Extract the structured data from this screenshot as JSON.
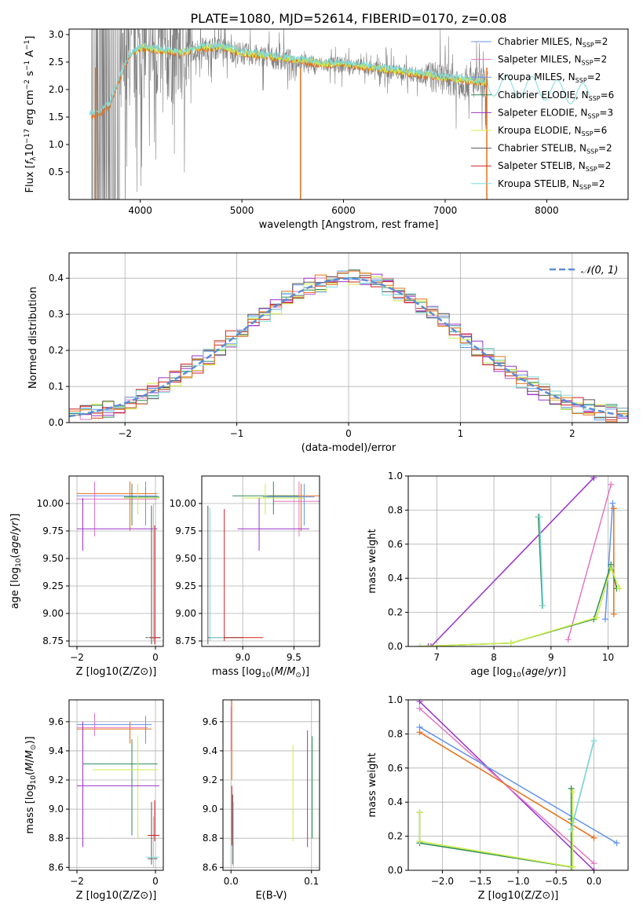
{
  "figure": {
    "title": "PLATE=1080, MJD=52614, FIBERID=0170, z=0.08"
  },
  "colors": {
    "chabrier_miles": "#6495ED",
    "salpeter_miles": "#E377C2",
    "kroupa_miles": "#6495ED",
    "chabrier_elodie": "#2E8B57",
    "salpeter_elodie": "#9932CC",
    "kroupa_elodie": "#CCEE44",
    "chabrier_stelib": "#555555",
    "salpeter_stelib": "#CC2222",
    "kroupa_stelib": "#7FDBDB",
    "orange": "#E8701A",
    "data_gray": "#808080"
  },
  "chart_data": [
    {
      "id": "spectrum",
      "type": "line",
      "xlabel": "wavelength [Angstrom, rest frame]",
      "ylabel": "Flux [f_λ 10^-17 erg cm^-2 s^-1 A^-1]",
      "xlim": [
        3300,
        8800
      ],
      "ylim": [
        0.0,
        3.1
      ],
      "xticks": [
        "4000",
        "5000",
        "6000",
        "7000",
        "8000"
      ],
      "yticks": [
        "0.5",
        "1.0",
        "1.5",
        "2.0",
        "2.5",
        "3.0"
      ],
      "legend_position": "right",
      "legend": [
        {
          "label": "Chabrier MILES, N",
          "sub": "SSP",
          "tail": "=2",
          "color": "#6495ED"
        },
        {
          "label": "Salpeter MILES, N",
          "sub": "SSP",
          "tail": "=2",
          "color": "#E377C2"
        },
        {
          "label": "Kroupa MILES, N",
          "sub": "SSP",
          "tail": "=2",
          "color": "#6495ED"
        },
        {
          "label": "Chabrier ELODIE, N",
          "sub": "SSP",
          "tail": "=6",
          "color": "#2E8B57"
        },
        {
          "label": "Salpeter ELODIE, N",
          "sub": "SSP",
          "tail": "=3",
          "color": "#9932CC"
        },
        {
          "label": "Kroupa ELODIE, N",
          "sub": "SSP",
          "tail": "=6",
          "color": "#CCEE44"
        },
        {
          "label": "Chabrier STELIB, N",
          "sub": "SSP",
          "tail": "=2",
          "color": "#555555"
        },
        {
          "label": "Salpeter STELIB, N",
          "sub": "SSP",
          "tail": "=2",
          "color": "#CC2222"
        },
        {
          "label": "Kroupa STELIB, N",
          "sub": "SSP",
          "tail": "=2",
          "color": "#7FDBDB"
        }
      ],
      "continuum": {
        "x": [
          3500,
          3600,
          3700,
          3800,
          3900,
          4000,
          4200,
          4400,
          4600,
          4800,
          5000,
          5200,
          5400,
          5600,
          5800,
          6000,
          6200,
          6400,
          6600,
          6800,
          7000,
          7200,
          7400,
          7600,
          7800,
          8000,
          8200,
          8400
        ],
        "y": [
          1.5,
          1.55,
          1.7,
          2.2,
          2.6,
          2.75,
          2.7,
          2.65,
          2.75,
          2.75,
          2.65,
          2.6,
          2.55,
          2.5,
          2.45,
          2.45,
          2.4,
          2.35,
          2.3,
          2.25,
          2.2,
          2.15,
          2.1,
          2.05,
          2.05,
          2.0,
          1.95,
          1.9
        ]
      }
    },
    {
      "id": "residuals",
      "type": "histogram",
      "xlabel": "(data-model)/error",
      "ylabel": "Normed distribution",
      "xlim": [
        -2.5,
        2.5
      ],
      "ylim": [
        0.0,
        0.47
      ],
      "xticks": [
        "−2",
        "−1",
        "0",
        "1",
        "2"
      ],
      "yticks": [
        "0.0",
        "0.1",
        "0.2",
        "0.3",
        "0.4"
      ],
      "legend_label": "𝒩(0, 1)",
      "legend_position": "top-right",
      "grid": true
    },
    {
      "id": "z-age",
      "type": "scatter",
      "xlabel": "Z [log10(Z/Z⊙)]",
      "ylabel": "age [log10(age/yr)]",
      "xlim": [
        -2.2,
        0.2
      ],
      "ylim": [
        8.7,
        10.25
      ],
      "xticks": [
        "−2",
        "0"
      ],
      "yticks": [
        "8.75",
        "9.00",
        "9.25",
        "9.50",
        "9.75",
        "10.00"
      ],
      "grid": true
    },
    {
      "id": "mass-age",
      "type": "scatter",
      "xlabel": "mass [log10(M/M⊙)]",
      "xlim": [
        8.6,
        9.75
      ],
      "ylim": [
        8.7,
        10.25
      ],
      "xticks": [
        "9.0",
        "9.5"
      ],
      "yticks": [
        "8.75",
        "9.00",
        "9.25",
        "9.50",
        "9.75",
        "10.00"
      ],
      "grid": true
    },
    {
      "id": "age-weight",
      "type": "line",
      "xlabel": "age [log10(age/yr)]",
      "ylabel": "mass weight",
      "xlim": [
        6.5,
        10.35
      ],
      "ylim": [
        0.0,
        1.0
      ],
      "xticks": [
        "7",
        "8",
        "9",
        "10"
      ],
      "yticks": [
        "0.0",
        "0.2",
        "0.4",
        "0.6",
        "0.8",
        "1.0"
      ],
      "grid": true,
      "series": [
        {
          "color": "#9932CC",
          "x": [
            6.85,
            6.9,
            9.75
          ],
          "y": [
            0.0,
            0.0,
            0.99
          ]
        },
        {
          "color": "#E377C2",
          "x": [
            9.3,
            10.05
          ],
          "y": [
            0.04,
            0.95
          ]
        },
        {
          "color": "#6495ED",
          "x": [
            9.95,
            10.08
          ],
          "y": [
            0.16,
            0.84
          ]
        },
        {
          "color": "#E8701A",
          "x": [
            10.1,
            10.1
          ],
          "y": [
            0.19,
            0.81
          ]
        },
        {
          "color": "#2E8B57",
          "x": [
            6.7,
            8.3,
            9.75,
            10.05,
            10.15
          ],
          "y": [
            0.0,
            0.02,
            0.16,
            0.48,
            0.34
          ]
        },
        {
          "color": "#CCEE44",
          "x": [
            6.7,
            8.3,
            9.8,
            10.05,
            10.2
          ],
          "y": [
            0.0,
            0.02,
            0.17,
            0.46,
            0.34
          ]
        },
        {
          "color": "#2E8B57",
          "x": [
            8.78,
            8.85
          ],
          "y": [
            0.76,
            0.24
          ]
        },
        {
          "color": "#7FDBDB",
          "x": [
            8.8,
            8.86
          ],
          "y": [
            0.76,
            0.24
          ]
        }
      ]
    },
    {
      "id": "z-mass",
      "type": "scatter",
      "xlabel": "Z [log10(Z/Z⊙)]",
      "ylabel": "mass [log10(M/M⊙)]",
      "xlim": [
        -2.2,
        0.2
      ],
      "ylim": [
        8.58,
        9.75
      ],
      "xticks": [
        "−2",
        "0"
      ],
      "yticks": [
        "8.6",
        "8.8",
        "9.0",
        "9.2",
        "9.4",
        "9.6"
      ],
      "grid": true
    },
    {
      "id": "ebv-mass",
      "type": "scatter",
      "xlabel": "E(B-V)",
      "xlim": [
        -0.01,
        0.11
      ],
      "ylim": [
        8.58,
        9.75
      ],
      "xticks": [
        "0.0",
        "0.1"
      ],
      "yticks": [
        "8.6",
        "8.8",
        "9.0",
        "9.2",
        "9.4",
        "9.6"
      ],
      "grid": true
    },
    {
      "id": "z-weight",
      "type": "line",
      "xlabel": "Z [log10(Z/Z⊙)]",
      "ylabel": "mass weight",
      "xlim": [
        -2.45,
        0.45
      ],
      "ylim": [
        0.0,
        1.0
      ],
      "xticks": [
        "−2.0",
        "−1.5",
        "−1.0",
        "−0.5",
        "0.0"
      ],
      "yticks": [
        "0.0",
        "0.2",
        "0.4",
        "0.6",
        "0.8",
        "1.0"
      ],
      "grid": true,
      "series": [
        {
          "color": "#9932CC",
          "x": [
            -2.3,
            0.0
          ],
          "y": [
            0.99,
            0.0
          ]
        },
        {
          "color": "#E377C2",
          "x": [
            -2.3,
            0.0
          ],
          "y": [
            0.95,
            0.04
          ]
        },
        {
          "color": "#6495ED",
          "x": [
            -2.3,
            0.3
          ],
          "y": [
            0.84,
            0.16
          ]
        },
        {
          "color": "#E8701A",
          "x": [
            -2.3,
            0.0
          ],
          "y": [
            0.81,
            0.19
          ]
        },
        {
          "color": "#2E8B57",
          "x": [
            -2.3,
            -2.3,
            -0.3,
            -0.3,
            -0.3
          ],
          "y": [
            0.34,
            0.16,
            0.02,
            0.48,
            0.3
          ]
        },
        {
          "color": "#CCEE44",
          "x": [
            -2.3,
            -2.3,
            -0.28,
            -0.28,
            -0.28
          ],
          "y": [
            0.34,
            0.17,
            0.02,
            0.46,
            0.28
          ]
        },
        {
          "color": "#2E8B57",
          "x": [
            -0.3,
            0.0
          ],
          "y": [
            0.24,
            0.76
          ]
        },
        {
          "color": "#7FDBDB",
          "x": [
            -0.3,
            0.0
          ],
          "y": [
            0.24,
            0.76
          ]
        }
      ]
    }
  ]
}
